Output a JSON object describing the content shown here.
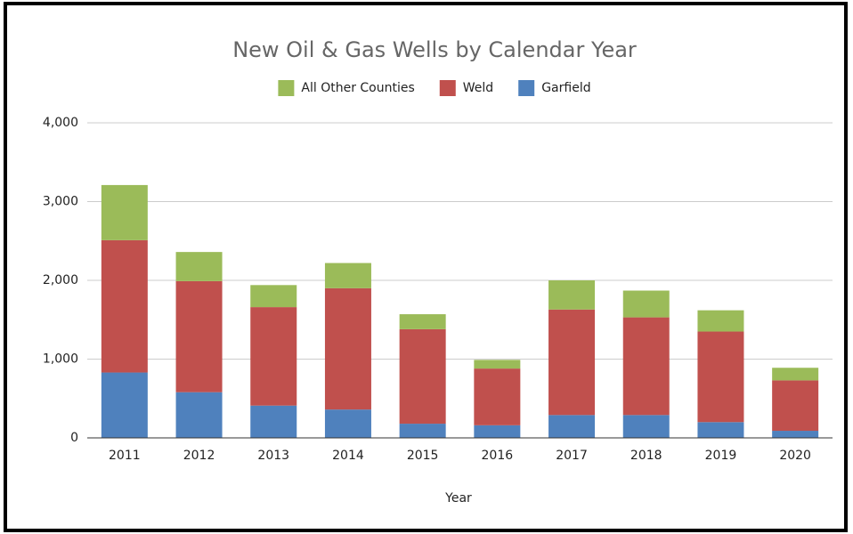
{
  "chart_data": {
    "type": "stacked_bar",
    "title": "New Oil & Gas Wells by Calendar Year",
    "x_label": "Year",
    "categories": [
      "2011",
      "2012",
      "2013",
      "2014",
      "2015",
      "2016",
      "2017",
      "2018",
      "2019",
      "2020"
    ],
    "series": [
      {
        "name": "Garfield",
        "color": "#4f81bd",
        "values": [
          830,
          580,
          410,
          360,
          180,
          160,
          290,
          290,
          200,
          90
        ]
      },
      {
        "name": "Weld",
        "color": "#c0504d",
        "values": [
          1680,
          1410,
          1250,
          1540,
          1200,
          720,
          1340,
          1240,
          1150,
          640
        ]
      },
      {
        "name": "All Other Counties",
        "color": "#9bbb59",
        "values": [
          700,
          370,
          280,
          320,
          190,
          110,
          370,
          340,
          270,
          160
        ]
      }
    ],
    "ylim": [
      0,
      4000
    ],
    "yticks": [
      0,
      {
        "value": 1000,
        "label": "1,000"
      },
      {
        "value": 2000,
        "label": "2,000"
      },
      {
        "value": 3000,
        "label": "3,000"
      },
      {
        "value": 4000,
        "label": "4,000"
      }
    ],
    "grid": true,
    "legend": "top"
  }
}
